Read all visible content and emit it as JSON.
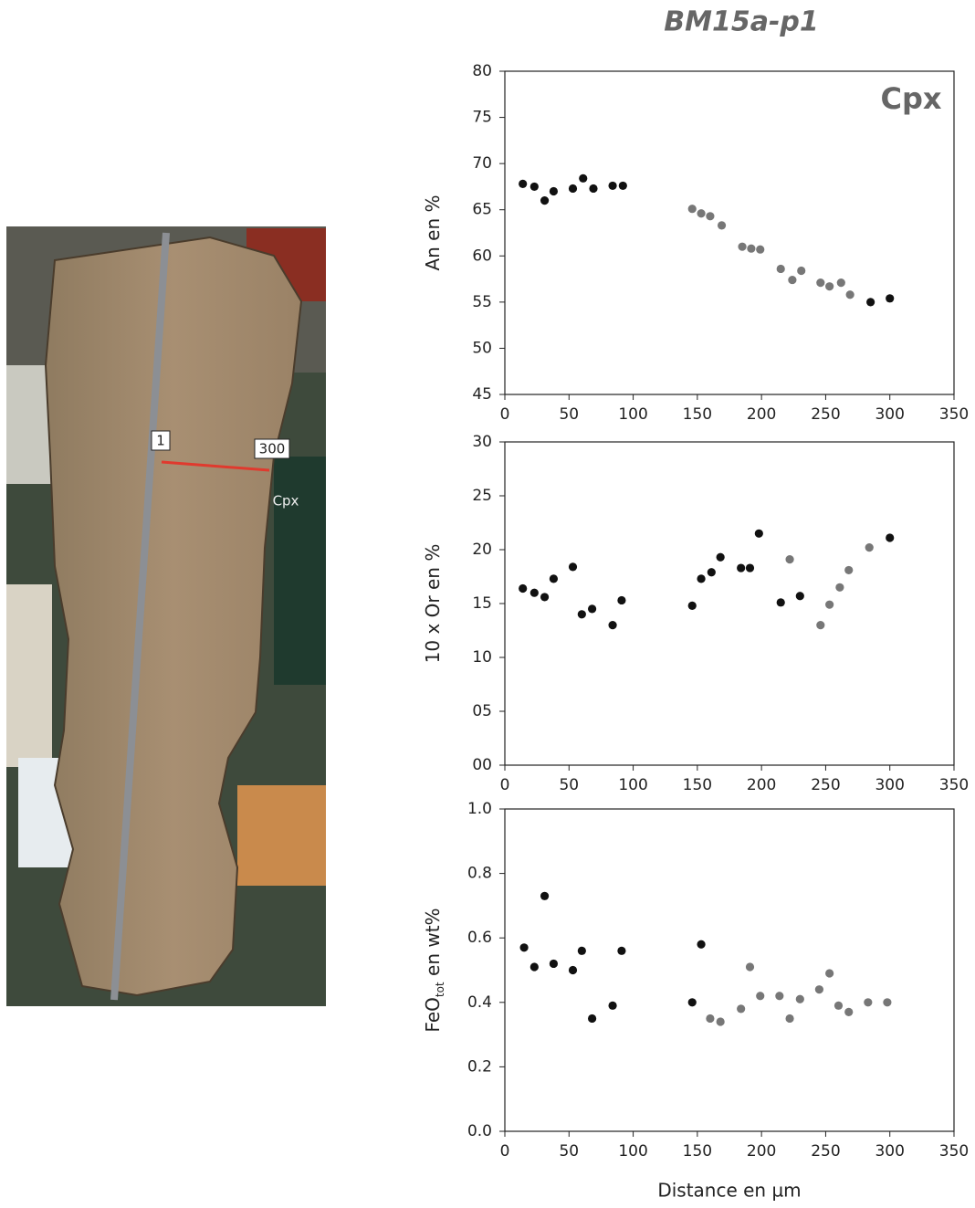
{
  "figure_title": "BM15a-p1",
  "photo": {
    "labels": [
      "1",
      "300",
      "Cpx"
    ]
  },
  "chart_data": [
    {
      "type": "scatter",
      "ylabel": [
        "An en %"
      ],
      "annotation": "Cpx",
      "xlim": [
        0,
        350
      ],
      "xticks": [
        0,
        50,
        100,
        150,
        200,
        250,
        300,
        350
      ],
      "ylim": [
        45,
        80
      ],
      "yticks": [
        45,
        50,
        55,
        60,
        65,
        70,
        75,
        80
      ],
      "series": [
        {
          "color": "#111111",
          "x": [
            14,
            23,
            31,
            38,
            53,
            61,
            69,
            84,
            92,
            285,
            300
          ],
          "values": [
            67.8,
            67.5,
            66.0,
            67.0,
            67.3,
            68.4,
            67.3,
            67.6,
            67.6,
            55.0,
            55.4
          ]
        },
        {
          "color": "#777777",
          "x": [
            146,
            153,
            160,
            169,
            185,
            192,
            199,
            215,
            224,
            231,
            246,
            253,
            262,
            269
          ],
          "values": [
            65.1,
            64.6,
            64.3,
            63.3,
            61.0,
            60.8,
            60.7,
            58.6,
            57.4,
            58.4,
            57.1,
            56.7,
            57.1,
            55.8
          ]
        }
      ]
    },
    {
      "type": "scatter",
      "ylabel": [
        "10 x Or en %"
      ],
      "xlim": [
        0,
        350
      ],
      "xticks": [
        0,
        50,
        100,
        150,
        200,
        250,
        300,
        350
      ],
      "ylim": [
        0,
        30
      ],
      "yticks": [
        {
          "value": 0,
          "label": "00"
        },
        {
          "value": 5,
          "label": "05"
        },
        10,
        15,
        20,
        25,
        30
      ],
      "series": [
        {
          "color": "#111111",
          "x": [
            14,
            23,
            31,
            38,
            53,
            60,
            68,
            84,
            91,
            146,
            153,
            161,
            168,
            184,
            191,
            198,
            215,
            230,
            300
          ],
          "values": [
            16.4,
            16.0,
            15.6,
            17.3,
            18.4,
            14.0,
            14.5,
            13.0,
            15.3,
            14.8,
            17.3,
            17.9,
            19.3,
            18.3,
            18.3,
            21.5,
            15.1,
            15.7,
            21.1
          ]
        },
        {
          "color": "#777777",
          "x": [
            222,
            246,
            253,
            261,
            268,
            284
          ],
          "values": [
            19.1,
            13.0,
            14.9,
            16.5,
            18.1,
            20.2
          ]
        }
      ]
    },
    {
      "type": "scatter",
      "ylabel": [
        "FeO",
        "tot",
        " en wt%"
      ],
      "xlabel": "Distance en µm",
      "xlim": [
        0,
        350
      ],
      "xticks": [
        0,
        50,
        100,
        150,
        200,
        250,
        300,
        350
      ],
      "ylim": [
        0,
        1
      ],
      "yticks": [
        {
          "value": 0,
          "label": "0.0"
        },
        0.2,
        0.4,
        0.6,
        0.8,
        {
          "value": 1,
          "label": "1.0"
        }
      ],
      "series": [
        {
          "color": "#111111",
          "x": [
            15,
            23,
            31,
            38,
            53,
            60,
            68,
            84,
            91,
            146,
            153
          ],
          "values": [
            0.57,
            0.51,
            0.73,
            0.52,
            0.5,
            0.56,
            0.35,
            0.39,
            0.56,
            0.4,
            0.58
          ]
        },
        {
          "color": "#777777",
          "x": [
            160,
            168,
            184,
            191,
            199,
            214,
            222,
            230,
            245,
            253,
            260,
            268,
            283,
            298
          ],
          "values": [
            0.35,
            0.34,
            0.38,
            0.51,
            0.42,
            0.42,
            0.35,
            0.41,
            0.44,
            0.49,
            0.39,
            0.37,
            0.4,
            0.4
          ]
        }
      ]
    }
  ]
}
